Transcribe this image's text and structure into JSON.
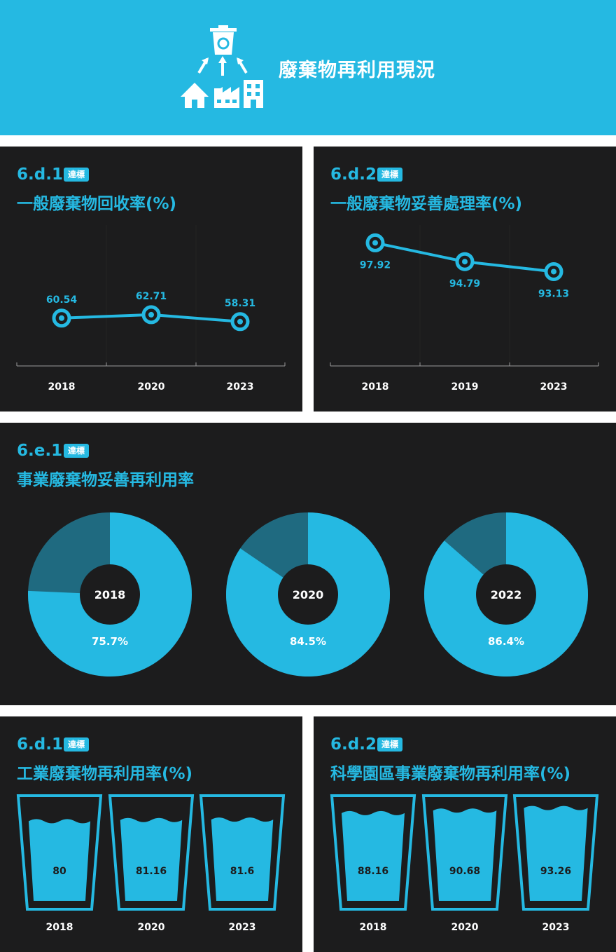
{
  "header": {
    "title": "廢棄物再利用現況"
  },
  "colors": {
    "accent": "#25b9e2",
    "dark": "#1c1c1d",
    "pie_other": "#1f6a80"
  },
  "badge_label": "達標",
  "panels": {
    "p1": {
      "code": "6.d.1",
      "title": "一般廢棄物回收率(%)"
    },
    "p2": {
      "code": "6.d.2",
      "title": "一般廢棄物妥善處理率(%)"
    },
    "p3": {
      "code": "6.e.1",
      "title": "事業廢棄物妥善再利用率"
    },
    "p4": {
      "code": "6.d.1",
      "title": "工業廢棄物再利用率(%)"
    },
    "p5": {
      "code": "6.d.2",
      "title": "科學園區事業廢棄物再利用率(%)"
    }
  },
  "chart_data": [
    {
      "type": "line",
      "x": [
        "2018",
        "2020",
        "2023"
      ],
      "series": [
        {
          "values": [
            60.54,
            62.71,
            58.31
          ]
        }
      ]
    },
    {
      "type": "line",
      "x": [
        "2018",
        "2019",
        "2023"
      ],
      "series": [
        {
          "values": [
            97.92,
            94.79,
            93.13
          ]
        }
      ]
    },
    {
      "type": "pie",
      "items": [
        {
          "year": "2018",
          "value": 75.7,
          "label": "75.7%"
        },
        {
          "year": "2020",
          "value": 84.5,
          "label": "84.5%"
        },
        {
          "year": "2022",
          "value": 86.4,
          "label": "86.4%"
        }
      ]
    },
    {
      "type": "bar",
      "categories": [
        "2018",
        "2020",
        "2023"
      ],
      "values": [
        80,
        81.16,
        81.6
      ],
      "value_labels": [
        "80",
        "81.16",
        "81.6"
      ]
    },
    {
      "type": "bar",
      "categories": [
        "2018",
        "2020",
        "2023"
      ],
      "values": [
        88.16,
        90.68,
        93.26
      ],
      "value_labels": [
        "88.16",
        "90.68",
        "93.26"
      ]
    }
  ]
}
